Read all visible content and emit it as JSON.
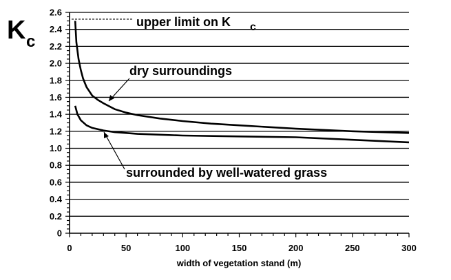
{
  "chart_data": {
    "type": "line",
    "xlabel": "width of vegetation stand (m)",
    "ylabel_main": "K",
    "ylabel_sub": "c",
    "xlim": [
      0,
      300
    ],
    "ylim": [
      0,
      2.6
    ],
    "x_ticks": [
      0,
      50,
      100,
      150,
      200,
      250,
      300
    ],
    "y_ticks": [
      0,
      0.2,
      0.4,
      0.6,
      0.8,
      1.0,
      1.2,
      1.4,
      1.6,
      1.8,
      2.0,
      2.2,
      2.4,
      2.6
    ],
    "y_tick_labels": [
      "0",
      "0.2",
      "0.4",
      "0.6",
      "0.8",
      "1.0",
      "1.2",
      "1.4",
      "1.6",
      "1.8",
      "2.0",
      "2.2",
      "2.4",
      "2.6"
    ],
    "grid": true,
    "upper_limit": {
      "y": 2.52,
      "label_main": "upper limit on K",
      "label_sub": "c"
    },
    "series": [
      {
        "id": "dry",
        "label": "dry surroundings",
        "x": [
          5,
          6,
          8,
          10,
          12,
          15,
          20,
          25,
          30,
          40,
          50,
          60,
          80,
          100,
          125,
          150,
          200,
          250,
          300
        ],
        "y": [
          2.5,
          2.25,
          2.05,
          1.92,
          1.82,
          1.72,
          1.62,
          1.57,
          1.53,
          1.46,
          1.42,
          1.39,
          1.35,
          1.32,
          1.29,
          1.27,
          1.23,
          1.2,
          1.18
        ]
      },
      {
        "id": "wet",
        "label": "surrounded by well-watered grass",
        "x": [
          5,
          7,
          10,
          15,
          20,
          30,
          40,
          60,
          80,
          100,
          150,
          200,
          250,
          300
        ],
        "y": [
          1.5,
          1.4,
          1.33,
          1.27,
          1.24,
          1.21,
          1.19,
          1.17,
          1.16,
          1.15,
          1.14,
          1.13,
          1.1,
          1.07
        ]
      }
    ]
  }
}
